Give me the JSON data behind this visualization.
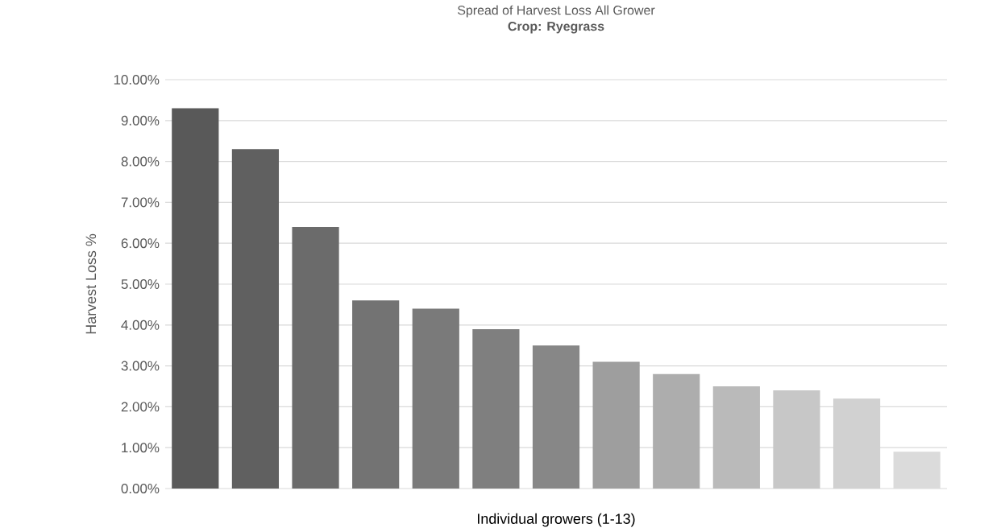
{
  "chart_data": {
    "type": "bar",
    "title": "Spread of Harvest Loss All Grower",
    "subtitle": "**Crop: Ryegrass**",
    "xlabel": "Individual growers (1-13)",
    "ylabel": "Harvest Loss %",
    "categories": [
      null,
      null,
      null,
      null,
      null,
      null,
      null,
      null,
      null,
      null,
      null,
      null,
      null
    ],
    "values": [
      9.3,
      8.3,
      6.4,
      4.6,
      4.4,
      3.9,
      3.5,
      3.1,
      2.8,
      2.5,
      2.4,
      2.2,
      0.9
    ],
    "colors": [
      "#595959",
      "#606060",
      "#6b6b6b",
      "#737373",
      "#7a7a7a",
      "#7f7f7f",
      "#878787",
      "#9e9e9e",
      "#adadad",
      "#bababa",
      "#c7c7c7",
      "#d1d1d1",
      "#dbdbdb"
    ],
    "ylim": [
      0,
      10
    ],
    "yticks": [
      {
        "value": 0,
        "label": "0.00%"
      },
      {
        "value": 1,
        "label": "1.00%"
      },
      {
        "value": 2,
        "label": "2.00%"
      },
      {
        "value": 3,
        "label": "3.00%"
      },
      {
        "value": 4,
        "label": "4.00%"
      },
      {
        "value": 5,
        "label": "5.00%"
      },
      {
        "value": 6,
        "label": "6.00%"
      },
      {
        "value": 7,
        "label": "7.00%"
      },
      {
        "value": 8,
        "label": "8.00%"
      },
      {
        "value": 9,
        "label": "9.00%"
      },
      {
        "value": 10,
        "label": "10.00%"
      }
    ],
    "grid": "y"
  }
}
